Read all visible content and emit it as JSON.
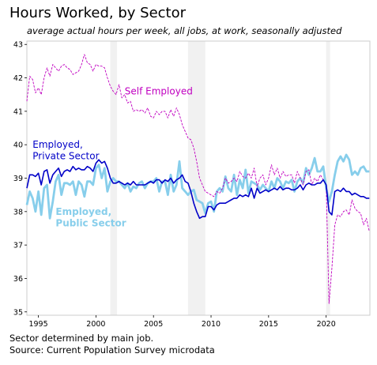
{
  "chart_data": {
    "type": "line",
    "title": "Hours Worked, by Sector",
    "subtitle": "average actual hours per week, all jobs, at work, seasonally adjusted",
    "xlabel": "",
    "ylabel": "",
    "xlim": [
      1994,
      2023.8
    ],
    "ylim": [
      34.9,
      43.1
    ],
    "x_ticks": [
      1995,
      2000,
      2005,
      2010,
      2015,
      2020
    ],
    "y_ticks": [
      35,
      36,
      37,
      38,
      39,
      40,
      41,
      42,
      43
    ],
    "grid": true,
    "recessions": [
      {
        "start": 2001.25,
        "end": 2001.83
      },
      {
        "start": 2008.0,
        "end": 2009.5
      },
      {
        "start": 2020.0,
        "end": 2020.33
      }
    ],
    "series": [
      {
        "name": "Self Employed",
        "label_lines": [
          "Self Employed"
        ],
        "color": "#c000c0",
        "style": "dashed",
        "x": [
          1994.0,
          1994.25,
          1994.5,
          1994.75,
          1995.0,
          1995.25,
          1995.5,
          1995.75,
          1996.0,
          1996.25,
          1996.5,
          1996.75,
          1997.0,
          1997.25,
          1997.5,
          1997.75,
          1998.0,
          1998.25,
          1998.5,
          1998.75,
          1999.0,
          1999.25,
          1999.5,
          1999.75,
          2000.0,
          2000.25,
          2000.5,
          2000.75,
          2001.0,
          2001.25,
          2001.5,
          2001.75,
          2002.0,
          2002.25,
          2002.5,
          2002.75,
          2003.0,
          2003.25,
          2003.5,
          2003.75,
          2004.0,
          2004.25,
          2004.5,
          2004.75,
          2005.0,
          2005.25,
          2005.5,
          2005.75,
          2006.0,
          2006.25,
          2006.5,
          2006.75,
          2007.0,
          2007.25,
          2007.5,
          2007.75,
          2008.0,
          2008.25,
          2008.5,
          2008.75,
          2009.0,
          2009.25,
          2009.5,
          2009.75,
          2010.0,
          2010.25,
          2010.5,
          2010.75,
          2011.0,
          2011.25,
          2011.5,
          2011.75,
          2012.0,
          2012.25,
          2012.5,
          2012.75,
          2013.0,
          2013.25,
          2013.5,
          2013.75,
          2014.0,
          2014.25,
          2014.5,
          2014.75,
          2015.0,
          2015.25,
          2015.5,
          2015.75,
          2016.0,
          2016.25,
          2016.5,
          2016.75,
          2017.0,
          2017.25,
          2017.5,
          2017.75,
          2018.0,
          2018.25,
          2018.5,
          2018.75,
          2019.0,
          2019.25,
          2019.5,
          2019.75,
          2020.0,
          2020.25,
          2020.5,
          2020.75,
          2021.0,
          2021.25,
          2021.5,
          2021.75,
          2022.0,
          2022.25,
          2022.5,
          2022.75,
          2023.0,
          2023.25,
          2023.5,
          2023.75
        ],
        "y": [
          41.3,
          42.05,
          41.95,
          41.55,
          41.7,
          41.5,
          42.0,
          42.3,
          42.05,
          42.4,
          42.3,
          42.2,
          42.35,
          42.4,
          42.3,
          42.25,
          42.1,
          42.15,
          42.2,
          42.4,
          42.7,
          42.45,
          42.4,
          42.2,
          42.4,
          42.35,
          42.35,
          42.3,
          42.0,
          41.75,
          41.6,
          41.5,
          41.8,
          41.4,
          41.5,
          41.25,
          41.3,
          41.0,
          41.05,
          41.0,
          41.05,
          40.95,
          41.1,
          40.85,
          40.8,
          41.0,
          40.9,
          41.0,
          41.0,
          40.8,
          41.05,
          40.85,
          41.1,
          40.9,
          40.6,
          40.4,
          40.2,
          40.15,
          39.9,
          39.5,
          39.0,
          38.8,
          38.6,
          38.55,
          38.5,
          38.45,
          38.6,
          38.55,
          38.7,
          39.0,
          38.85,
          38.9,
          39.0,
          38.9,
          39.2,
          39.05,
          39.0,
          39.15,
          39.0,
          39.3,
          38.75,
          39.0,
          39.1,
          38.8,
          39.0,
          39.4,
          39.1,
          39.3,
          39.0,
          39.2,
          39.05,
          39.1,
          39.1,
          38.85,
          39.2,
          39.0,
          38.8,
          39.2,
          39.25,
          38.8,
          39.0,
          38.9,
          39.1,
          38.95,
          38.8,
          35.25,
          36.3,
          37.6,
          37.9,
          37.85,
          38.0,
          38.05,
          37.9,
          38.35,
          38.1,
          38.0,
          37.95,
          37.6,
          37.8,
          37.4
        ]
      },
      {
        "name": "Employed, Private Sector",
        "label_lines": [
          "Employed,",
          "Private Sector"
        ],
        "color": "#0000c8",
        "style": "solid",
        "x": [
          1994.0,
          1994.25,
          1994.5,
          1994.75,
          1995.0,
          1995.25,
          1995.5,
          1995.75,
          1996.0,
          1996.25,
          1996.5,
          1996.75,
          1997.0,
          1997.25,
          1997.5,
          1997.75,
          1998.0,
          1998.25,
          1998.5,
          1998.75,
          1999.0,
          1999.25,
          1999.5,
          1999.75,
          2000.0,
          2000.25,
          2000.5,
          2000.75,
          2001.0,
          2001.25,
          2001.5,
          2001.75,
          2002.0,
          2002.25,
          2002.5,
          2002.75,
          2003.0,
          2003.25,
          2003.5,
          2003.75,
          2004.0,
          2004.25,
          2004.5,
          2004.75,
          2005.0,
          2005.25,
          2005.5,
          2005.75,
          2006.0,
          2006.25,
          2006.5,
          2006.75,
          2007.0,
          2007.25,
          2007.5,
          2007.75,
          2008.0,
          2008.25,
          2008.5,
          2008.75,
          2009.0,
          2009.25,
          2009.5,
          2009.75,
          2010.0,
          2010.25,
          2010.5,
          2010.75,
          2011.0,
          2011.25,
          2011.5,
          2011.75,
          2012.0,
          2012.25,
          2012.5,
          2012.75,
          2013.0,
          2013.25,
          2013.5,
          2013.75,
          2014.0,
          2014.25,
          2014.5,
          2014.75,
          2015.0,
          2015.25,
          2015.5,
          2015.75,
          2016.0,
          2016.25,
          2016.5,
          2016.75,
          2017.0,
          2017.25,
          2017.5,
          2017.75,
          2018.0,
          2018.25,
          2018.5,
          2018.75,
          2019.0,
          2019.25,
          2019.5,
          2019.75,
          2020.0,
          2020.25,
          2020.5,
          2020.75,
          2021.0,
          2021.25,
          2021.5,
          2021.75,
          2022.0,
          2022.25,
          2022.5,
          2022.75,
          2023.0,
          2023.25,
          2023.5,
          2023.75
        ],
        "y": [
          38.7,
          39.1,
          39.1,
          39.05,
          39.15,
          38.8,
          39.2,
          39.25,
          38.85,
          39.1,
          39.2,
          39.3,
          39.05,
          39.2,
          39.25,
          39.2,
          39.35,
          39.25,
          39.3,
          39.25,
          39.25,
          39.35,
          39.3,
          39.2,
          39.45,
          39.55,
          39.45,
          39.5,
          39.3,
          39.0,
          38.85,
          38.85,
          38.9,
          38.85,
          38.8,
          38.85,
          38.8,
          38.9,
          38.8,
          38.8,
          38.8,
          38.8,
          38.85,
          38.9,
          38.85,
          38.95,
          38.95,
          38.85,
          38.95,
          38.9,
          39.0,
          38.85,
          38.95,
          39.0,
          39.1,
          38.9,
          38.85,
          38.6,
          38.25,
          38.0,
          37.8,
          37.85,
          37.85,
          38.15,
          38.15,
          38.05,
          38.2,
          38.25,
          38.25,
          38.25,
          38.3,
          38.35,
          38.4,
          38.4,
          38.5,
          38.45,
          38.5,
          38.45,
          38.7,
          38.4,
          38.7,
          38.55,
          38.6,
          38.65,
          38.6,
          38.65,
          38.7,
          38.65,
          38.75,
          38.65,
          38.7,
          38.7,
          38.65,
          38.65,
          38.7,
          38.8,
          38.65,
          38.8,
          38.85,
          38.8,
          38.8,
          38.85,
          38.85,
          38.95,
          38.8,
          38.0,
          37.9,
          38.6,
          38.65,
          38.6,
          38.7,
          38.6,
          38.6,
          38.5,
          38.55,
          38.5,
          38.45,
          38.45,
          38.4,
          38.4
        ]
      },
      {
        "name": "Employed, Public Sector",
        "label_lines": [
          "Employed,",
          "Public Sector"
        ],
        "color": "#87ceeb",
        "style": "thick",
        "x": [
          1994.0,
          1994.25,
          1994.5,
          1994.75,
          1995.0,
          1995.25,
          1995.5,
          1995.75,
          1996.0,
          1996.25,
          1996.5,
          1996.75,
          1997.0,
          1997.25,
          1997.5,
          1997.75,
          1998.0,
          1998.25,
          1998.5,
          1998.75,
          1999.0,
          1999.25,
          1999.5,
          1999.75,
          2000.0,
          2000.25,
          2000.5,
          2000.75,
          2001.0,
          2001.25,
          2001.5,
          2001.75,
          2002.0,
          2002.25,
          2002.5,
          2002.75,
          2003.0,
          2003.25,
          2003.5,
          2003.75,
          2004.0,
          2004.25,
          2004.5,
          2004.75,
          2005.0,
          2005.25,
          2005.5,
          2005.75,
          2006.0,
          2006.25,
          2006.5,
          2006.75,
          2007.0,
          2007.25,
          2007.5,
          2007.75,
          2008.0,
          2008.25,
          2008.5,
          2008.75,
          2009.0,
          2009.25,
          2009.5,
          2009.75,
          2010.0,
          2010.25,
          2010.5,
          2010.75,
          2011.0,
          2011.25,
          2011.5,
          2011.75,
          2012.0,
          2012.25,
          2012.5,
          2012.75,
          2013.0,
          2013.25,
          2013.5,
          2013.75,
          2014.0,
          2014.25,
          2014.5,
          2014.75,
          2015.0,
          2015.25,
          2015.5,
          2015.75,
          2016.0,
          2016.25,
          2016.5,
          2016.75,
          2017.0,
          2017.25,
          2017.5,
          2017.75,
          2018.0,
          2018.25,
          2018.5,
          2018.75,
          2019.0,
          2019.25,
          2019.5,
          2019.75,
          2020.0,
          2020.25,
          2020.5,
          2020.75,
          2021.0,
          2021.25,
          2021.5,
          2021.75,
          2022.0,
          2022.25,
          2022.5,
          2022.75,
          2023.0,
          2023.25,
          2023.5,
          2023.75
        ],
        "y": [
          38.2,
          38.6,
          38.4,
          38.0,
          38.6,
          37.9,
          38.7,
          38.8,
          37.8,
          38.3,
          38.9,
          39.1,
          38.5,
          38.85,
          38.85,
          38.8,
          38.9,
          38.5,
          38.9,
          38.8,
          38.45,
          38.9,
          38.9,
          38.8,
          39.3,
          39.4,
          39.0,
          39.3,
          38.6,
          38.9,
          39.0,
          38.9,
          38.9,
          38.8,
          38.7,
          38.85,
          38.6,
          38.75,
          38.7,
          38.85,
          38.9,
          38.7,
          38.85,
          38.9,
          38.9,
          39.0,
          38.6,
          38.9,
          38.9,
          38.5,
          39.1,
          38.6,
          38.8,
          39.5,
          38.7,
          38.6,
          38.5,
          38.6,
          38.65,
          38.35,
          38.3,
          38.25,
          37.95,
          38.25,
          38.3,
          38.0,
          38.6,
          38.7,
          38.6,
          39.05,
          38.7,
          38.6,
          39.1,
          38.5,
          38.95,
          38.7,
          39.25,
          38.55,
          38.9,
          38.85,
          38.8,
          38.65,
          38.8,
          38.7,
          38.6,
          38.9,
          38.7,
          39.0,
          38.9,
          38.7,
          38.9,
          38.85,
          38.95,
          38.6,
          38.9,
          39.0,
          38.85,
          39.3,
          39.1,
          39.3,
          39.6,
          39.2,
          39.2,
          39.35,
          38.7,
          38.3,
          38.6,
          39.1,
          39.5,
          39.65,
          39.5,
          39.7,
          39.55,
          39.1,
          39.2,
          39.1,
          39.3,
          39.35,
          39.2,
          39.2
        ]
      }
    ]
  },
  "footnote": {
    "line1": "Sector determined by main job.",
    "line2": "Source: Current Population Survey microdata"
  }
}
